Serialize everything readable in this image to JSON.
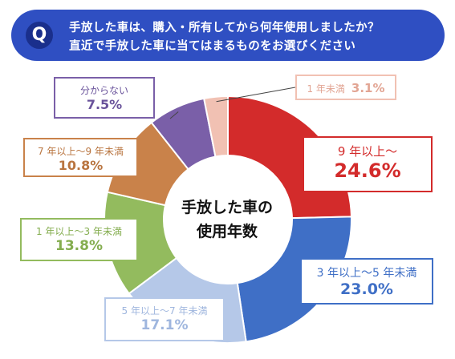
{
  "question": {
    "badge": "Q",
    "line1": "手放した車は、購入・所有してから何年使用しましたか？",
    "line2": "直近で手放した車に当てはまるものをお選びください"
  },
  "center": {
    "line1": "手放した車の",
    "line2": "使用年数"
  },
  "chart_data": {
    "type": "pie",
    "style": "donut",
    "start": "12 o'clock, clockwise",
    "series": [
      {
        "label": "9 年以上～",
        "value": 24.6,
        "value_text": "24.6%",
        "color": "#d32b2b"
      },
      {
        "label": "3 年以上～5 年未満",
        "value": 23.0,
        "value_text": "23.0%",
        "color": "#3f6fc6"
      },
      {
        "label": "5 年以上～7 年未満",
        "value": 17.1,
        "value_text": "17.1%",
        "color": "#b5c8e8"
      },
      {
        "label": "1 年以上～3 年未満",
        "value": 13.8,
        "value_text": "13.8%",
        "color": "#93bb5e"
      },
      {
        "label": "7 年以上～9 年未満",
        "value": 10.8,
        "value_text": "10.8%",
        "color": "#c9824a"
      },
      {
        "label": "分からない",
        "value": 7.5,
        "value_text": "7.5%",
        "color": "#7a5fa8"
      },
      {
        "label": "1 年未満",
        "value": 3.1,
        "value_text": "3.1%",
        "color": "#f1c1b3"
      }
    ]
  }
}
